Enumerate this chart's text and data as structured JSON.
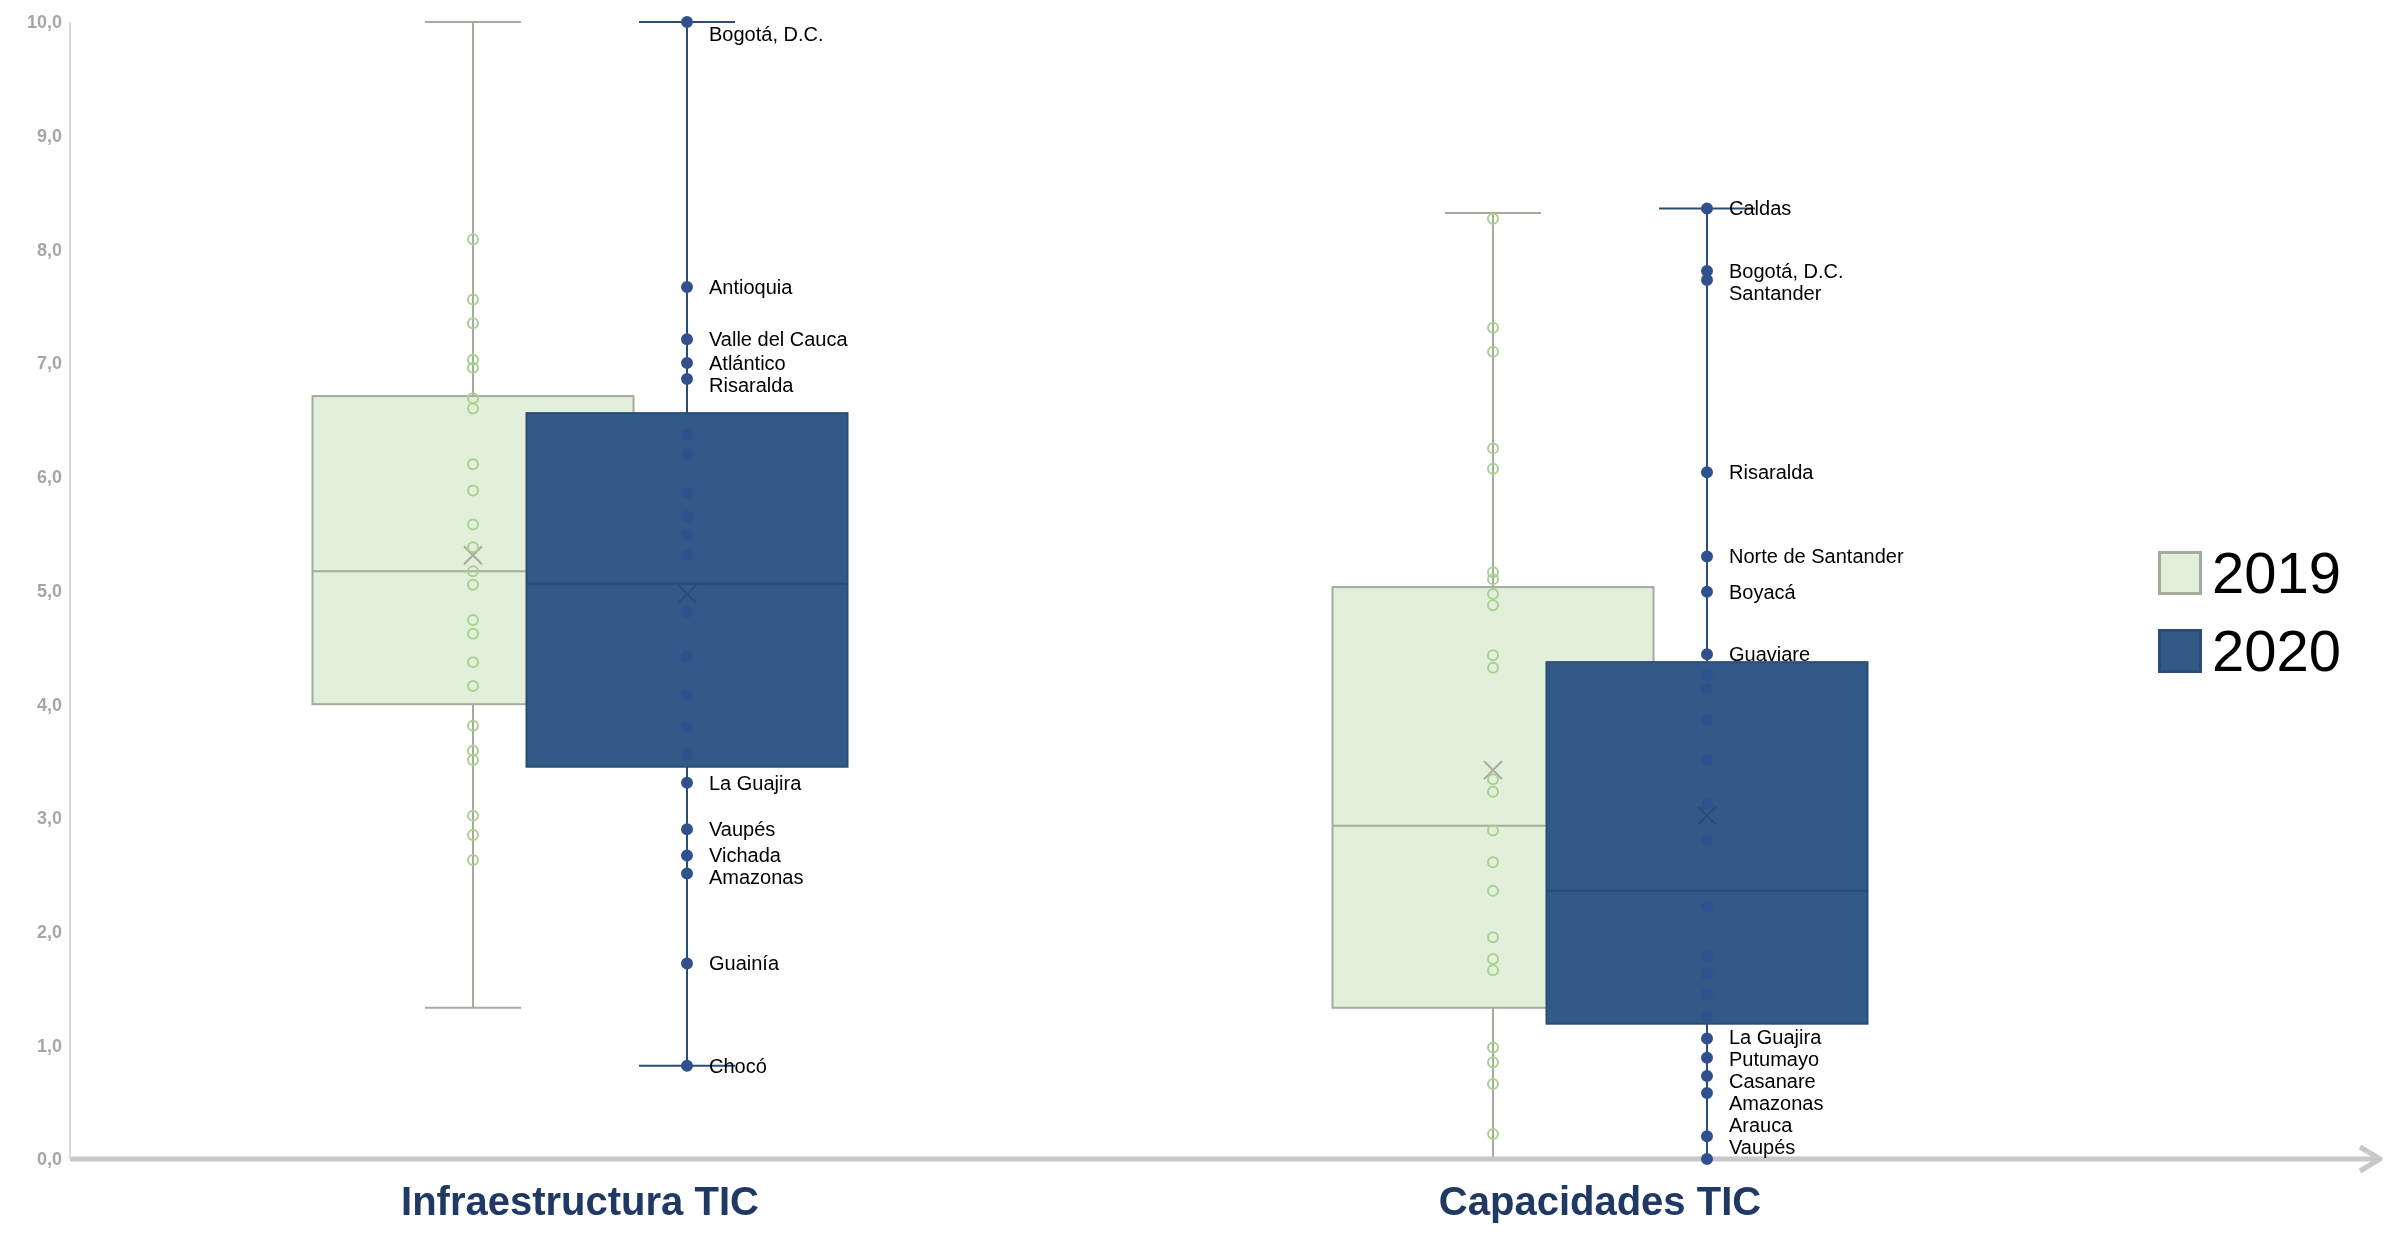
{
  "chart_data": {
    "type": "box",
    "categories": [
      "Infraestructura TIC",
      "Capacidades TIC"
    ],
    "ylim": [
      0,
      10
    ],
    "yticks": [
      {
        "value": 0,
        "label": "0,0"
      },
      {
        "value": 1,
        "label": "1,0"
      },
      {
        "value": 2,
        "label": "2,0"
      },
      {
        "value": 3,
        "label": "3,0"
      },
      {
        "value": 4,
        "label": "4,0"
      },
      {
        "value": 5,
        "label": "5,0"
      },
      {
        "value": 6,
        "label": "6,0"
      },
      {
        "value": 7,
        "label": "7,0"
      },
      {
        "value": 8,
        "label": "8,0"
      },
      {
        "value": 9,
        "label": "9,0"
      },
      {
        "value": 10,
        "label": "10,0"
      }
    ],
    "legend": "right",
    "marker": "circle",
    "series": [
      {
        "name": "2019",
        "color": "#e2efda",
        "boxes": [
          {
            "low": 1.33,
            "q1": 4.0,
            "median": 5.17,
            "q3": 6.71,
            "high": 10.0,
            "mean": 5.31
          },
          {
            "low": 0.0,
            "q1": 1.33,
            "median": 2.93,
            "q3": 5.03,
            "high": 8.32,
            "mean": 3.42
          }
        ]
      },
      {
        "name": "2020",
        "color": "#325a88",
        "boxes": [
          {
            "low": 0.82,
            "q1": 3.45,
            "median": 5.06,
            "q3": 6.56,
            "high": 10.0,
            "mean": 4.97
          },
          {
            "low": 0.0,
            "q1": 1.19,
            "median": 2.36,
            "q3": 4.37,
            "high": 8.36,
            "mean": 3.02
          }
        ]
      },
      {
        "type": "scatter",
        "color": "#a9d18e",
        "x": [
          "Infraestructura TIC",
          "Infraestructura TIC",
          "Infraestructura TIC",
          "Infraestructura TIC",
          "Infraestructura TIC",
          "Infraestructura TIC",
          "Infraestructura TIC",
          "Infraestructura TIC",
          "Infraestructura TIC",
          "Infraestructura TIC",
          "Infraestructura TIC",
          "Infraestructura TIC",
          "Infraestructura TIC",
          "Infraestructura TIC",
          "Infraestructura TIC",
          "Infraestructura TIC",
          "Infraestructura TIC",
          "Infraestructura TIC",
          "Infraestructura TIC",
          "Infraestructura TIC",
          "Infraestructura TIC",
          "Infraestructura TIC",
          "Infraestructura TIC",
          "Capacidades TIC",
          "Capacidades TIC",
          "Capacidades TIC",
          "Capacidades TIC",
          "Capacidades TIC",
          "Capacidades TIC",
          "Capacidades TIC",
          "Capacidades TIC",
          "Capacidades TIC",
          "Capacidades TIC",
          "Capacidades TIC",
          "Capacidades TIC",
          "Capacidades TIC",
          "Capacidades TIC",
          "Capacidades TIC",
          "Capacidades TIC",
          "Capacidades TIC",
          "Capacidades TIC",
          "Capacidades TIC",
          "Capacidades TIC",
          "Capacidades TIC",
          "Capacidades TIC",
          "Capacidades TIC"
        ],
        "values": [
          8.09,
          7.56,
          7.35,
          7.03,
          6.96,
          6.69,
          6.6,
          6.11,
          5.88,
          5.58,
          5.38,
          5.17,
          5.05,
          4.74,
          4.62,
          4.37,
          4.16,
          3.81,
          3.59,
          3.51,
          3.02,
          2.85,
          2.63,
          8.27,
          7.31,
          7.1,
          6.25,
          6.07,
          5.16,
          5.1,
          4.97,
          4.87,
          4.43,
          4.32,
          3.34,
          3.23,
          2.89,
          2.61,
          2.36,
          1.95,
          1.76,
          1.66,
          0.98,
          0.85,
          0.66,
          0.22
        ]
      },
      {
        "type": "scatter",
        "color": "#2f528f",
        "x": [
          "Infraestructura TIC",
          "Infraestructura TIC",
          "Infraestructura TIC",
          "Infraestructura TIC",
          "Infraestructura TIC",
          "Infraestructura TIC",
          "Infraestructura TIC",
          "Infraestructura TIC",
          "Infraestructura TIC",
          "Infraestructura TIC",
          "Infraestructura TIC",
          "Infraestructura TIC",
          "Infraestructura TIC",
          "Infraestructura TIC",
          "Infraestructura TIC",
          "Infraestructura TIC",
          "Infraestructura TIC",
          "Infraestructura TIC",
          "Infraestructura TIC",
          "Infraestructura TIC",
          "Infraestructura TIC",
          "Infraestructura TIC",
          "Capacidades TIC",
          "Capacidades TIC",
          "Capacidades TIC",
          "Capacidades TIC",
          "Capacidades TIC",
          "Capacidades TIC",
          "Capacidades TIC",
          "Capacidades TIC",
          "Capacidades TIC",
          "Capacidades TIC",
          "Capacidades TIC",
          "Capacidades TIC",
          "Capacidades TIC",
          "Capacidades TIC",
          "Capacidades TIC",
          "Capacidades TIC",
          "Capacidades TIC",
          "Capacidades TIC",
          "Capacidades TIC",
          "Capacidades TIC",
          "Capacidades TIC",
          "Capacidades TIC",
          "Capacidades TIC",
          "Capacidades TIC"
        ],
        "values": [
          10.0,
          7.67,
          7.21,
          7.0,
          6.86,
          6.37,
          6.2,
          5.86,
          5.65,
          5.49,
          5.31,
          4.81,
          4.42,
          4.08,
          3.8,
          3.56,
          3.31,
          2.9,
          2.67,
          2.51,
          1.72,
          0.82,
          8.36,
          7.81,
          7.73,
          6.04,
          5.3,
          4.99,
          4.44,
          4.26,
          4.13,
          3.86,
          3.51,
          3.12,
          2.8,
          2.22,
          1.78,
          1.63,
          1.45,
          1.25,
          1.06,
          0.89,
          0.73,
          0.58,
          0.2,
          0.0
        ],
        "value_labels": [
          "Bogotá, D.C.",
          "Antioquia",
          "Valle del Cauca",
          "Atlántico",
          "Risaralda",
          null,
          null,
          null,
          null,
          null,
          null,
          null,
          null,
          null,
          null,
          null,
          "La Guajira",
          "Vaupés",
          "Vichada",
          "Amazonas",
          "Guainía",
          "Chocó",
          "Caldas",
          "Bogotá, D.C.",
          "Santander",
          "Risaralda",
          "Norte de Santander",
          "Boyacá",
          "Guaviare",
          null,
          null,
          null,
          null,
          null,
          null,
          null,
          null,
          null,
          null,
          null,
          "La Guajira",
          "Putumayo",
          "Casanare",
          "Amazonas",
          "Arauca",
          "Vaupés"
        ]
      }
    ]
  }
}
